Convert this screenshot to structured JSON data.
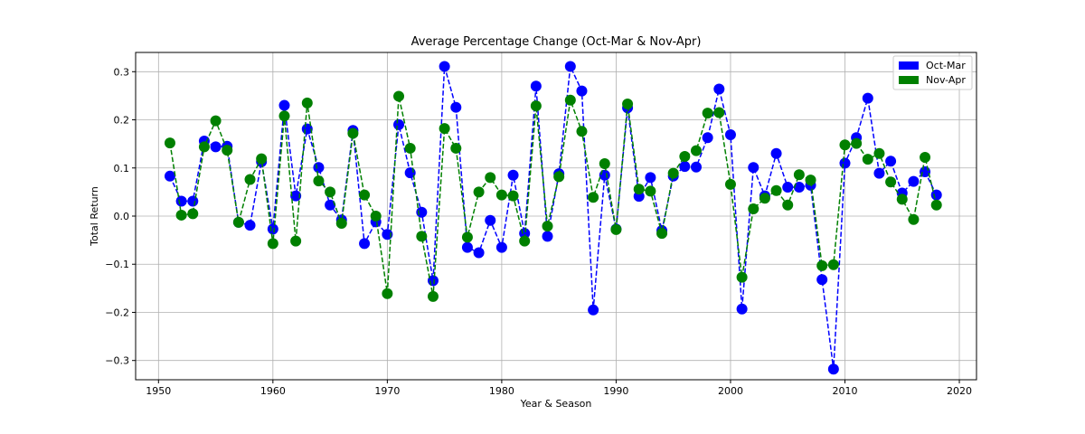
{
  "chart_data": {
    "type": "line",
    "title": "Average Percentage Change (Oct-Mar & Nov-Apr)",
    "xlabel": "Year & Season",
    "ylabel": "Total Return",
    "xlim": [
      1948,
      2021.5
    ],
    "ylim": [
      -0.34,
      0.34
    ],
    "xticks": [
      1950,
      1960,
      1970,
      1980,
      1990,
      2000,
      2010,
      2020
    ],
    "yticks": [
      -0.3,
      -0.2,
      -0.1,
      0.0,
      0.1,
      0.2,
      0.3
    ],
    "xtick_labels": [
      "1950",
      "1960",
      "1970",
      "1980",
      "1990",
      "2000",
      "2010",
      "2020"
    ],
    "ytick_labels": [
      "−0.3",
      "−0.2",
      "−0.1",
      "0.0",
      "0.1",
      "0.2",
      "0.3"
    ],
    "grid": true,
    "legend_position": "top-right",
    "x": [
      1951,
      1952,
      1953,
      1954,
      1955,
      1956,
      1957,
      1958,
      1959,
      1960,
      1961,
      1962,
      1963,
      1964,
      1965,
      1966,
      1967,
      1968,
      1969,
      1970,
      1971,
      1972,
      1973,
      1974,
      1975,
      1976,
      1977,
      1978,
      1979,
      1980,
      1981,
      1982,
      1983,
      1984,
      1985,
      1986,
      1987,
      1988,
      1989,
      1990,
      1991,
      1992,
      1993,
      1994,
      1995,
      1996,
      1997,
      1998,
      1999,
      2000,
      2001,
      2002,
      2003,
      2004,
      2005,
      2006,
      2007,
      2008,
      2009,
      2010,
      2011,
      2012,
      2013,
      2014,
      2015,
      2016,
      2017,
      2018
    ],
    "series": [
      {
        "name": "Oct-Mar",
        "color": "#0000ff",
        "values": [
          0.083,
          0.031,
          0.031,
          0.156,
          0.144,
          0.145,
          -0.013,
          -0.019,
          0.113,
          -0.027,
          0.23,
          0.042,
          0.181,
          0.101,
          0.023,
          -0.008,
          0.178,
          -0.057,
          -0.012,
          -0.038,
          0.19,
          0.09,
          0.008,
          -0.134,
          0.311,
          0.226,
          -0.065,
          -0.076,
          -0.009,
          -0.065,
          0.085,
          -0.036,
          0.27,
          -0.042,
          0.088,
          0.311,
          0.26,
          -0.195,
          0.085,
          -0.027,
          0.225,
          0.041,
          0.08,
          -0.03,
          0.083,
          0.103,
          0.102,
          0.163,
          0.264,
          0.169,
          -0.193,
          0.101,
          0.042,
          0.13,
          0.06,
          0.06,
          0.064,
          -0.132,
          -0.318,
          0.11,
          0.163,
          0.245,
          0.089,
          0.114,
          0.048,
          0.072,
          0.092,
          0.044
        ]
      },
      {
        "name": "Nov-Apr",
        "color": "#008000",
        "values": [
          0.152,
          0.002,
          0.005,
          0.144,
          0.198,
          0.137,
          -0.013,
          0.076,
          0.119,
          -0.057,
          0.208,
          -0.052,
          0.235,
          0.073,
          0.05,
          -0.015,
          0.172,
          0.044,
          0.0,
          -0.161,
          0.249,
          0.141,
          -0.042,
          -0.167,
          0.182,
          0.141,
          -0.044,
          0.05,
          0.08,
          0.044,
          0.042,
          -0.052,
          0.229,
          -0.021,
          0.082,
          0.241,
          0.176,
          0.039,
          0.109,
          -0.028,
          0.233,
          0.056,
          0.052,
          -0.036,
          0.089,
          0.124,
          0.136,
          0.214,
          0.215,
          0.066,
          -0.127,
          0.015,
          0.037,
          0.053,
          0.023,
          0.086,
          0.075,
          -0.103,
          -0.101,
          0.148,
          0.151,
          0.118,
          0.13,
          0.071,
          0.035,
          -0.007,
          0.122,
          0.023
        ]
      }
    ]
  }
}
